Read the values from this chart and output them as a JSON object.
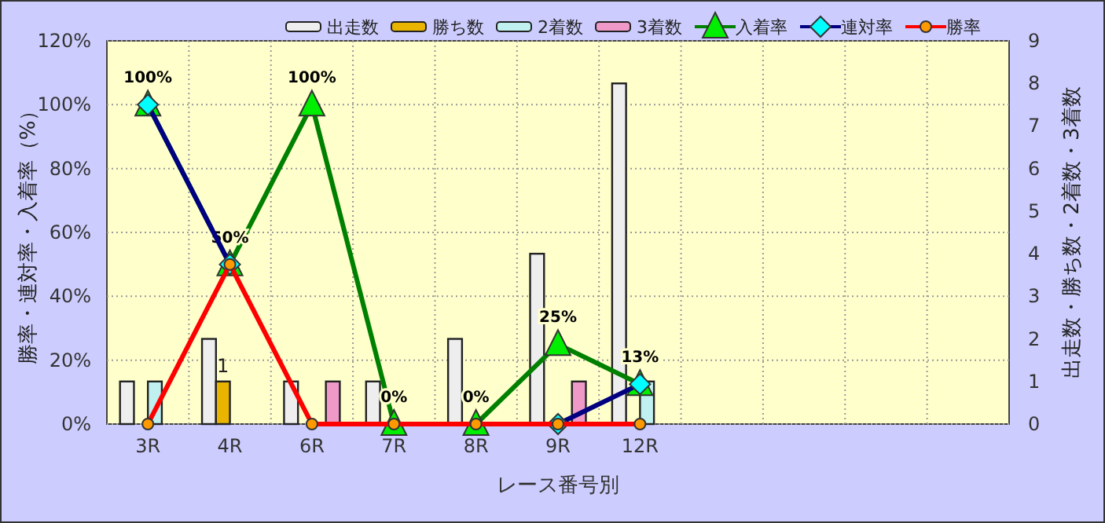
{
  "chart_data": {
    "type": "bar",
    "categories": [
      "3R",
      "4R",
      "6R",
      "7R",
      "8R",
      "9R",
      "12R",
      null,
      null,
      null,
      null
    ],
    "xlabel": "レース番号別",
    "ylabel": "勝率・連対率・入着率（%）",
    "y2label": "出走数・勝ち数・2着数・3着数",
    "ylim": [
      0,
      120
    ],
    "yticks": [
      {
        "value": 0,
        "label": "0%"
      },
      {
        "value": 20,
        "label": "20%"
      },
      {
        "value": 40,
        "label": "40%"
      },
      {
        "value": 60,
        "label": "60%"
      },
      {
        "value": 80,
        "label": "80%"
      },
      {
        "value": 100,
        "label": "100%"
      },
      {
        "value": 120,
        "label": "120%"
      }
    ],
    "y2lim": [
      0,
      9
    ],
    "y2ticks": [
      0,
      1,
      2,
      3,
      4,
      5,
      6,
      7,
      8,
      9
    ],
    "grid": true,
    "legend": "top",
    "series": [
      {
        "name": "出走数",
        "axis": "y2",
        "color": "#eeeeee",
        "values": [
          1,
          2,
          1,
          1,
          2,
          4,
          8,
          null,
          null,
          null,
          null
        ]
      },
      {
        "name": "勝ち数",
        "axis": "y2",
        "color": "#e8b400",
        "values": [
          0,
          1,
          0,
          0,
          0,
          0,
          0,
          null,
          null,
          null,
          null
        ],
        "value_labels": [
          null,
          "1",
          null,
          null,
          null,
          null,
          null,
          null,
          null,
          null,
          null
        ]
      },
      {
        "name": "2着数",
        "axis": "y2",
        "color": "#c0f0f0",
        "values": [
          1,
          0,
          0,
          0,
          0,
          0,
          1,
          null,
          null,
          null,
          null
        ]
      },
      {
        "name": "3着数",
        "axis": "y2",
        "color": "#ee99c8",
        "values": [
          0,
          0,
          1,
          0,
          0,
          1,
          0,
          null,
          null,
          null,
          null
        ]
      },
      {
        "name": "入着率",
        "type": "line",
        "marker": "triangle",
        "color": "#008000",
        "values": [
          100,
          50,
          100,
          0,
          0,
          25,
          12.5,
          null,
          null,
          null,
          null
        ],
        "value_labels": [
          "100%",
          "50%",
          "100%",
          "0%",
          "0%",
          "25%",
          "13%",
          null,
          null,
          null,
          null
        ]
      },
      {
        "name": "連対率",
        "type": "line",
        "marker": "diamond",
        "color": "#000080",
        "values": [
          100,
          50,
          null,
          null,
          null,
          0,
          12.5,
          null,
          null,
          null,
          null
        ]
      },
      {
        "name": "勝率",
        "type": "line",
        "marker": "circle",
        "color": "#ff0000",
        "values": [
          0,
          50,
          0,
          0,
          0,
          0,
          0,
          null,
          null,
          null,
          null
        ]
      }
    ]
  }
}
